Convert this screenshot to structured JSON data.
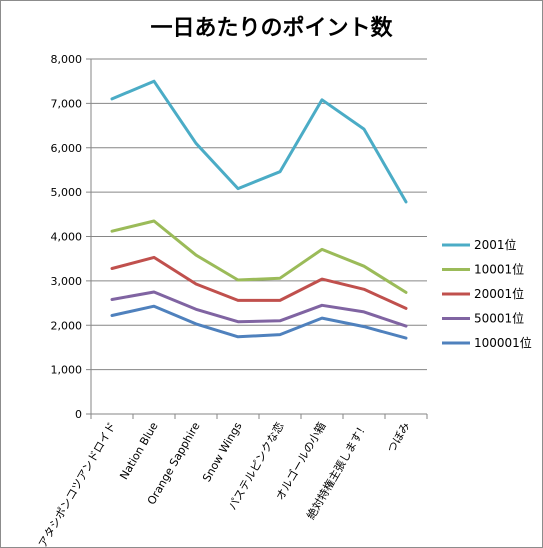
{
  "chart_data": {
    "type": "line",
    "title": "一日あたりのポイント数",
    "xlabel": "",
    "ylabel": "",
    "ylim": [
      0,
      8000
    ],
    "yticks": [
      0,
      1000,
      2000,
      3000,
      4000,
      5000,
      6000,
      7000,
      8000
    ],
    "ytick_labels": [
      "0",
      "1,000",
      "2,000",
      "3,000",
      "4,000",
      "5,000",
      "6,000",
      "7,000",
      "8,000"
    ],
    "grid": true,
    "legend_position": "right",
    "categories": [
      "アタシポンコツアンドロイド",
      "Nation Blue",
      "Orange Sapphire",
      "Snow Wings",
      "パステルピンクな恋",
      "オルゴールの小箱",
      "絶対特権主張します！",
      "つぼみ"
    ],
    "series": [
      {
        "name": "2001位",
        "color": "#4bacc6",
        "values": [
          7100,
          7500,
          6100,
          5080,
          5460,
          7080,
          6420,
          4780
        ]
      },
      {
        "name": "10001位",
        "color": "#9bbb59",
        "values": [
          4120,
          4350,
          3580,
          3020,
          3060,
          3710,
          3330,
          2740
        ]
      },
      {
        "name": "20001位",
        "color": "#c0504d",
        "values": [
          3280,
          3530,
          2930,
          2560,
          2560,
          3040,
          2810,
          2380
        ]
      },
      {
        "name": "50001位",
        "color": "#8064a2",
        "values": [
          2580,
          2750,
          2360,
          2080,
          2100,
          2450,
          2300,
          1980
        ]
      },
      {
        "name": "100001位",
        "color": "#4f81bd",
        "values": [
          2220,
          2430,
          2030,
          1740,
          1790,
          2160,
          1970,
          1710
        ]
      }
    ]
  }
}
